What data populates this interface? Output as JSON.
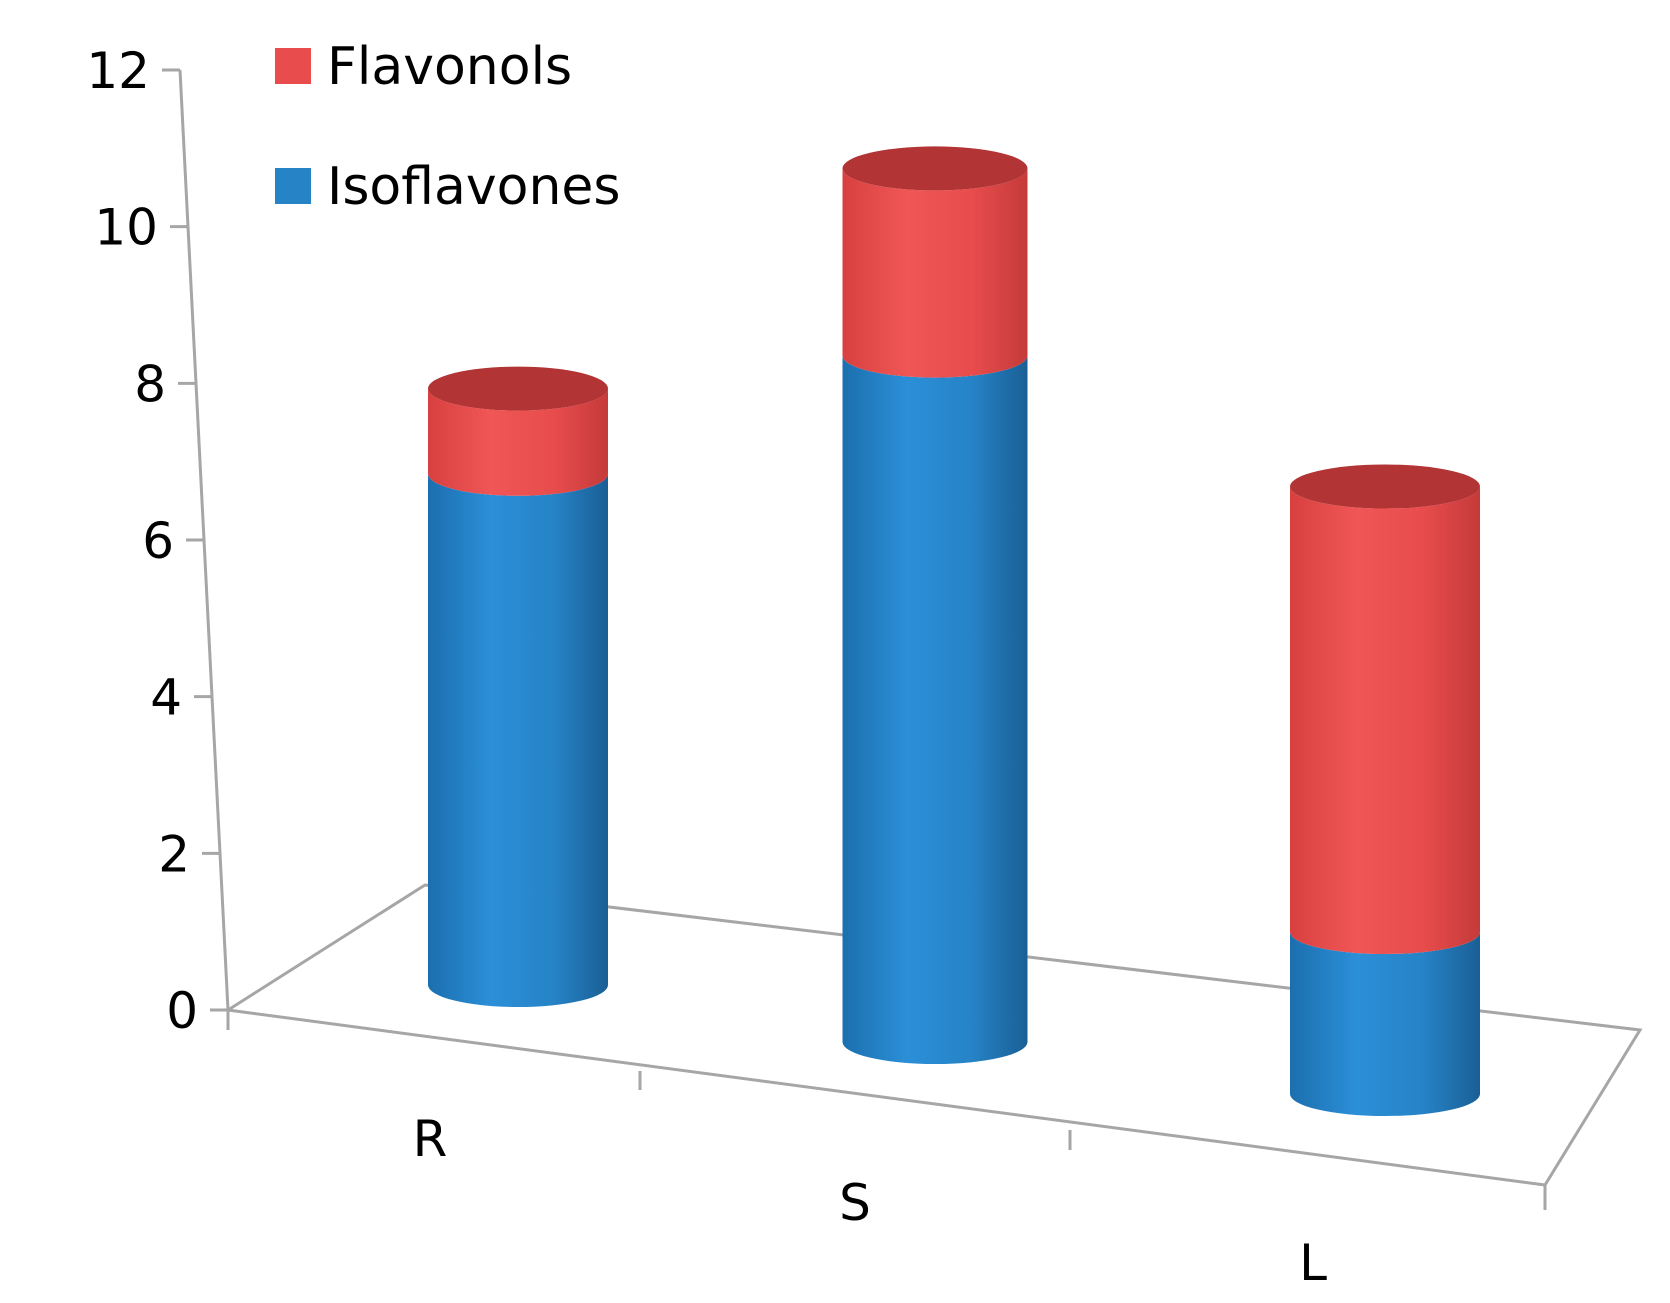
{
  "chart_data": {
    "type": "bar",
    "stacked": true,
    "style": "3d-cylinder",
    "categories": [
      "R",
      "S",
      "L"
    ],
    "series": [
      {
        "name": "Isoflavones",
        "values": [
          7.2,
          8.8,
          2.0
        ],
        "color": "#2683c6"
      },
      {
        "name": "Flavonols",
        "values": [
          1.2,
          2.4,
          5.5
        ],
        "color": "#e84c4c"
      }
    ],
    "title": "",
    "xlabel": "",
    "ylabel": "",
    "ylim": [
      0,
      12
    ],
    "yticks": [
      "0",
      "2",
      "4",
      "6",
      "8",
      "10",
      "12"
    ],
    "legend": {
      "position": "top-left",
      "order": [
        "Flavonols",
        "Isoflavones"
      ]
    },
    "grid": false
  }
}
